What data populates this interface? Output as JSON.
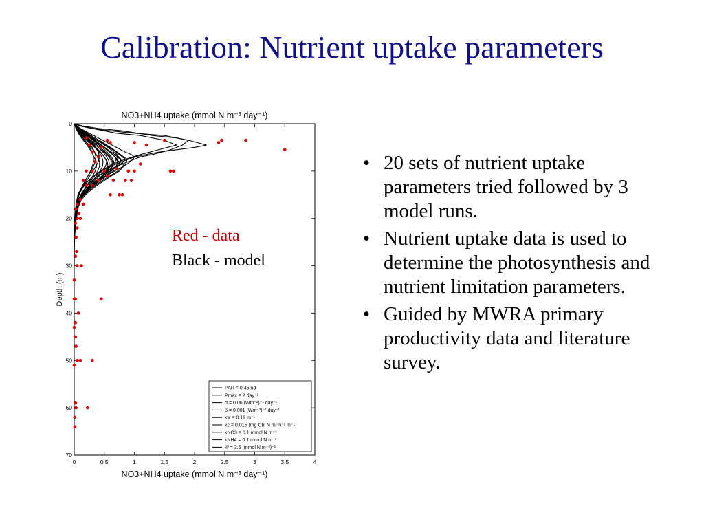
{
  "slide": {
    "title": "Calibration: Nutrient uptake parameters",
    "bullets": [
      "20 sets of nutrient uptake parameters tried followed by 3 model runs.",
      "Nutrient uptake data is used to determine the photosynthesis and nutrient limitation parameters.",
      "Guided by MWRA primary productivity data and literature survey."
    ],
    "bullet_glyph": "•"
  },
  "chart_data": {
    "type": "scatter",
    "title": "NO3+NH4 uptake  (mmol N m⁻³ day⁻¹)",
    "xlabel": "NO3+NH4 uptake  (mmol N m⁻³ day⁻¹)",
    "ylabel": "Depth (m)",
    "xlim": [
      0,
      4
    ],
    "ylim": [
      0,
      70
    ],
    "y_inverted": true,
    "xticks": [
      "0",
      "0.5",
      "1",
      "1.5",
      "2",
      "2.5",
      "3",
      "3.5",
      "4"
    ],
    "yticks": [
      "0",
      "10",
      "20",
      "30",
      "40",
      "50",
      "60",
      "70"
    ],
    "grid": false,
    "annotations": [
      {
        "text": "Red - data",
        "color": "#c00000"
      },
      {
        "text": "Black - model",
        "color": "#000000"
      }
    ],
    "legend": {
      "placement": "bottom-right",
      "entries": [
        "PAR  = 0.45 nd",
        "Pmax = 2 day⁻¹",
        "α = 0.06 (Wm⁻²)⁻¹ day⁻¹",
        "β = 0.001 (Wm⁻²)⁻¹ day⁻¹",
        "kw = 0.19 m⁻¹",
        "kc = 0.015 (mg Chl N m⁻³)⁻¹ m⁻¹",
        "kNO3 = 0.1 mmol N m⁻³",
        "kNH4 = 0.1 mmol N m⁻³",
        "Ψ = 3.5 (mmol N m⁻³)⁻¹"
      ]
    },
    "data_points": {
      "color": "#e00000",
      "x": [
        2.4,
        2.45,
        2.85,
        3.5,
        1.5,
        1.2,
        1.0,
        0.6,
        0.55,
        0.45,
        0.4,
        0.35,
        0.3,
        0.25,
        0.2,
        1.1,
        1.0,
        0.9,
        0.7,
        0.5,
        0.3,
        0.2,
        1.65,
        1.6,
        0.95,
        0.85,
        0.65,
        0.55,
        0.4,
        0.3,
        0.2,
        0.15,
        0.8,
        0.75,
        0.6,
        0.15,
        0.1,
        0.05,
        0.03,
        0.08,
        0.05,
        0.02,
        0.1,
        0.05,
        0.03,
        0.04,
        0.02,
        0.12,
        0.05,
        0.0,
        0.0,
        0.02,
        0.45,
        0.07,
        0.02,
        0.0,
        0.02,
        0.03,
        0.3,
        0.1,
        0.05,
        0.0,
        0.22,
        0.02,
        0.03,
        0.01,
        0.01
      ],
      "y": [
        4,
        3.5,
        3.5,
        5.5,
        3.5,
        4.5,
        4,
        4,
        3.5,
        5,
        7,
        8,
        6,
        4.5,
        3,
        8.5,
        10,
        10,
        9.5,
        10,
        10,
        10,
        10,
        10,
        12,
        12,
        12,
        11,
        12,
        13,
        13,
        12,
        15,
        15,
        15,
        17,
        16,
        17,
        18,
        19,
        20,
        21,
        20,
        22,
        24,
        27,
        28,
        30,
        30,
        33,
        37,
        37,
        37,
        40,
        42,
        43,
        45,
        47,
        50,
        50,
        50,
        51,
        60,
        59,
        60,
        62,
        64
      ]
    },
    "model_profiles": [
      {
        "x": [
          0,
          0.1,
          0.3,
          0.6,
          1.0,
          1.5,
          1.9,
          1.8,
          1.6,
          1.3,
          1.1,
          0.9,
          0.7,
          0.55,
          0.4,
          0.3,
          0.22,
          0.16,
          0.11,
          0.07,
          0.04,
          0.02,
          0.01,
          0.005,
          0
        ],
        "y": [
          0,
          0.5,
          1,
          1.5,
          2,
          2.5,
          3.5,
          4.5,
          5.5,
          6.5,
          7,
          8,
          9,
          10,
          11,
          12,
          13,
          14,
          15,
          16,
          18,
          20,
          22,
          25,
          30
        ]
      },
      {
        "x": [
          0,
          0.15,
          0.4,
          0.8,
          1.3,
          1.7,
          1.9,
          2.2,
          2.0,
          1.4,
          1.0,
          0.8,
          0.6,
          0.45,
          0.33,
          0.24,
          0.17,
          0.12,
          0.08,
          0.05,
          0.03,
          0.01,
          0
        ],
        "y": [
          0,
          0.5,
          1,
          1.5,
          2.5,
          3,
          3.5,
          4.5,
          5,
          6,
          7,
          8,
          9,
          10,
          11,
          12,
          13,
          14,
          15,
          16.5,
          18.5,
          21,
          25
        ]
      },
      {
        "x": [
          0,
          0.1,
          0.3,
          0.7,
          1.1,
          1.5,
          1.7,
          1.4,
          1.1,
          0.85,
          0.65,
          0.5,
          0.38,
          0.28,
          0.2,
          0.14,
          0.09,
          0.06,
          0.03,
          0.015,
          0
        ],
        "y": [
          0,
          0.5,
          1,
          2,
          2.5,
          3.5,
          4.5,
          5.5,
          6.5,
          7.5,
          8.5,
          9.5,
          10.5,
          11.5,
          12.5,
          13.5,
          14.5,
          16,
          18,
          21,
          25
        ]
      },
      {
        "x": [
          0,
          0.05,
          0.15,
          0.3,
          0.45,
          0.6,
          0.7,
          0.72,
          0.68,
          0.6,
          0.5,
          0.42,
          0.34,
          0.27,
          0.2,
          0.14,
          0.09,
          0.05,
          0.02,
          0
        ],
        "y": [
          0,
          1,
          2,
          3,
          4,
          5,
          6,
          7,
          8,
          9,
          10,
          11,
          12,
          13,
          14,
          15,
          16,
          18,
          21,
          25
        ]
      },
      {
        "x": [
          0,
          0.05,
          0.12,
          0.2,
          0.3,
          0.4,
          0.5,
          0.58,
          0.62,
          0.6,
          0.55,
          0.47,
          0.38,
          0.3,
          0.23,
          0.16,
          0.1,
          0.06,
          0.03,
          0.01,
          0
        ],
        "y": [
          0,
          1,
          2,
          3,
          4,
          5,
          6,
          7,
          8,
          9,
          10,
          11,
          12,
          13,
          14,
          15,
          16,
          17.5,
          19.5,
          22,
          26
        ]
      },
      {
        "x": [
          0,
          0.06,
          0.15,
          0.26,
          0.38,
          0.5,
          0.62,
          0.72,
          0.8,
          0.82,
          0.75,
          0.62,
          0.5,
          0.38,
          0.28,
          0.19,
          0.12,
          0.07,
          0.03,
          0.01,
          0
        ],
        "y": [
          0,
          1,
          2,
          3,
          4,
          5,
          6,
          7,
          8,
          9,
          10,
          11,
          12,
          13,
          14,
          15,
          16,
          17.5,
          19.5,
          22,
          26
        ]
      },
      {
        "x": [
          0,
          0.08,
          0.2,
          0.32,
          0.45,
          0.58,
          0.7,
          0.8,
          0.85,
          0.82,
          0.72,
          0.6,
          0.48,
          0.37,
          0.27,
          0.19,
          0.12,
          0.07,
          0.03,
          0.01,
          0
        ],
        "y": [
          0,
          1,
          2,
          3,
          4,
          5,
          6,
          7,
          7.5,
          8,
          9,
          10,
          11,
          12,
          13,
          14,
          15,
          16.5,
          18.5,
          21,
          25
        ]
      },
      {
        "x": [
          0,
          0.1,
          0.25,
          0.4,
          0.55,
          0.7,
          0.85,
          0.95,
          1.0,
          0.98,
          0.88,
          0.75,
          0.6,
          0.46,
          0.34,
          0.24,
          0.16,
          0.1,
          0.05,
          0.02,
          0
        ],
        "y": [
          0,
          1,
          2,
          3,
          4,
          5,
          6,
          6.5,
          7,
          7.5,
          8.5,
          9.5,
          10.5,
          11.5,
          12.5,
          13.5,
          14.5,
          16,
          18,
          21,
          25
        ]
      },
      {
        "x": [
          0,
          0.06,
          0.14,
          0.22,
          0.3,
          0.36,
          0.4,
          0.42,
          0.4,
          0.36,
          0.31,
          0.26,
          0.21,
          0.16,
          0.12,
          0.08,
          0.05,
          0.02,
          0
        ],
        "y": [
          0,
          1,
          2,
          3,
          4,
          5,
          6,
          7,
          8,
          9,
          10,
          11,
          12,
          13,
          14,
          15,
          16.5,
          19,
          24
        ]
      },
      {
        "x": [
          0,
          0.04,
          0.1,
          0.17,
          0.24,
          0.3,
          0.34,
          0.36,
          0.35,
          0.32,
          0.28,
          0.23,
          0.18,
          0.14,
          0.1,
          0.06,
          0.03,
          0.01,
          0
        ],
        "y": [
          0,
          1,
          2,
          3,
          4,
          5,
          6,
          7,
          8,
          9,
          10,
          11,
          12,
          13,
          14,
          15,
          17,
          20,
          25
        ]
      },
      {
        "x": [
          0,
          0.05,
          0.12,
          0.2,
          0.28,
          0.36,
          0.44,
          0.5,
          0.54,
          0.52,
          0.46,
          0.39,
          0.32,
          0.25,
          0.19,
          0.13,
          0.08,
          0.04,
          0.015,
          0
        ],
        "y": [
          0,
          1,
          2,
          3,
          4,
          5,
          6,
          7,
          8,
          9,
          10,
          11,
          12,
          13,
          14,
          15,
          16,
          18,
          21,
          25
        ]
      },
      {
        "x": [
          0,
          0.07,
          0.16,
          0.26,
          0.36,
          0.46,
          0.55,
          0.62,
          0.66,
          0.64,
          0.57,
          0.48,
          0.39,
          0.3,
          0.22,
          0.15,
          0.09,
          0.05,
          0.02,
          0
        ],
        "y": [
          0,
          1,
          2,
          3,
          4,
          5,
          6,
          7,
          8,
          9,
          10,
          11,
          12,
          13,
          14,
          15,
          16,
          18,
          21,
          25
        ]
      },
      {
        "x": [
          0,
          0.03,
          0.08,
          0.14,
          0.2,
          0.26,
          0.3,
          0.32,
          0.32,
          0.3,
          0.27,
          0.23,
          0.19,
          0.15,
          0.11,
          0.07,
          0.04,
          0.02,
          0
        ],
        "y": [
          0,
          1,
          2,
          3,
          4,
          5,
          6,
          7,
          8,
          9,
          10,
          11,
          12,
          13,
          14,
          15,
          17,
          20,
          26
        ]
      },
      {
        "x": [
          0,
          0.09,
          0.2,
          0.32,
          0.44,
          0.56,
          0.66,
          0.74,
          0.78,
          0.74,
          0.65,
          0.54,
          0.43,
          0.33,
          0.24,
          0.16,
          0.1,
          0.05,
          0.02,
          0
        ],
        "y": [
          0,
          1,
          2,
          3,
          4,
          5,
          6,
          7,
          7.5,
          8.5,
          9.5,
          10.5,
          11.5,
          12.5,
          13.5,
          14.5,
          15.5,
          17.5,
          20.5,
          25
        ]
      },
      {
        "x": [
          0,
          0.05,
          0.13,
          0.22,
          0.31,
          0.4,
          0.48,
          0.54,
          0.58,
          0.58,
          0.54,
          0.47,
          0.39,
          0.31,
          0.23,
          0.16,
          0.1,
          0.05,
          0.02,
          0
        ],
        "y": [
          0,
          1,
          2,
          3,
          4,
          5,
          6,
          7,
          8,
          9,
          10,
          11,
          12,
          13,
          14,
          15,
          16,
          18,
          21,
          25
        ]
      },
      {
        "x": [
          0,
          0.04,
          0.1,
          0.18,
          0.26,
          0.34,
          0.41,
          0.46,
          0.48,
          0.47,
          0.43,
          0.37,
          0.31,
          0.25,
          0.19,
          0.13,
          0.08,
          0.04,
          0.01,
          0
        ],
        "y": [
          0,
          1,
          2,
          3,
          4,
          5,
          6,
          7,
          8,
          9,
          10,
          11,
          12,
          13,
          14,
          15,
          16,
          18,
          21,
          26
        ]
      },
      {
        "x": [
          0,
          0.08,
          0.18,
          0.29,
          0.4,
          0.51,
          0.6,
          0.68,
          0.72,
          0.7,
          0.62,
          0.52,
          0.42,
          0.32,
          0.24,
          0.16,
          0.1,
          0.05,
          0.02,
          0
        ],
        "y": [
          0,
          1,
          2,
          3,
          4,
          5,
          6,
          7,
          8,
          9,
          10,
          11,
          12,
          13,
          14,
          15,
          16,
          18,
          21,
          25
        ]
      },
      {
        "x": [
          0,
          0.06,
          0.14,
          0.23,
          0.33,
          0.43,
          0.52,
          0.6,
          0.64,
          0.63,
          0.57,
          0.49,
          0.4,
          0.31,
          0.23,
          0.16,
          0.1,
          0.05,
          0.02,
          0
        ],
        "y": [
          0,
          1,
          2,
          3,
          4,
          5,
          6,
          7,
          8,
          9,
          10,
          11,
          12,
          13,
          14,
          15,
          16,
          18,
          21,
          25
        ]
      },
      {
        "x": [
          0,
          0.1,
          0.22,
          0.35,
          0.48,
          0.6,
          0.72,
          0.82,
          0.88,
          0.86,
          0.78,
          0.66,
          0.53,
          0.41,
          0.3,
          0.21,
          0.13,
          0.07,
          0.03,
          0
        ],
        "y": [
          0,
          1,
          2,
          3,
          4,
          5,
          6,
          7,
          7.5,
          8.5,
          9.5,
          10.5,
          11.5,
          12.5,
          13.5,
          14.5,
          15.5,
          17.5,
          20.5,
          25
        ]
      },
      {
        "x": [
          0,
          0.03,
          0.07,
          0.12,
          0.18,
          0.24,
          0.29,
          0.33,
          0.36,
          0.37,
          0.35,
          0.31,
          0.26,
          0.21,
          0.16,
          0.11,
          0.07,
          0.03,
          0.01,
          0
        ],
        "y": [
          0,
          1,
          2,
          3,
          4,
          5,
          6,
          7,
          8,
          9,
          10,
          11,
          12,
          13,
          14,
          15,
          16,
          18,
          21,
          26
        ]
      },
      {
        "x": [
          0,
          0.05,
          0.11,
          0.19,
          0.27,
          0.35,
          0.43,
          0.5,
          0.55,
          0.56,
          0.53,
          0.46,
          0.38,
          0.3,
          0.22,
          0.15,
          0.09,
          0.05,
          0.02,
          0
        ],
        "y": [
          0,
          1,
          2,
          3,
          4,
          5,
          6,
          7,
          8,
          9,
          10,
          11,
          12,
          13,
          14,
          15,
          16,
          18,
          21,
          25
        ]
      },
      {
        "x": [
          0,
          0.07,
          0.16,
          0.27,
          0.38,
          0.49,
          0.59,
          0.68,
          0.74,
          0.76,
          0.7,
          0.6,
          0.49,
          0.38,
          0.28,
          0.19,
          0.12,
          0.06,
          0.02,
          0
        ],
        "y": [
          0,
          1,
          2,
          3,
          4,
          5,
          6,
          7,
          8,
          8.5,
          9.5,
          10.5,
          11.5,
          12.5,
          13.5,
          14.5,
          15.5,
          17.5,
          20.5,
          25
        ]
      },
      {
        "x": [
          0,
          0.04,
          0.09,
          0.15,
          0.21,
          0.28,
          0.34,
          0.39,
          0.42,
          0.42,
          0.39,
          0.34,
          0.28,
          0.22,
          0.17,
          0.12,
          0.07,
          0.04,
          0.01,
          0
        ],
        "y": [
          0,
          1,
          2,
          3,
          4,
          5,
          6,
          7,
          8,
          9,
          10,
          11,
          12,
          13,
          14,
          15,
          16,
          18,
          21,
          26
        ]
      }
    ]
  }
}
